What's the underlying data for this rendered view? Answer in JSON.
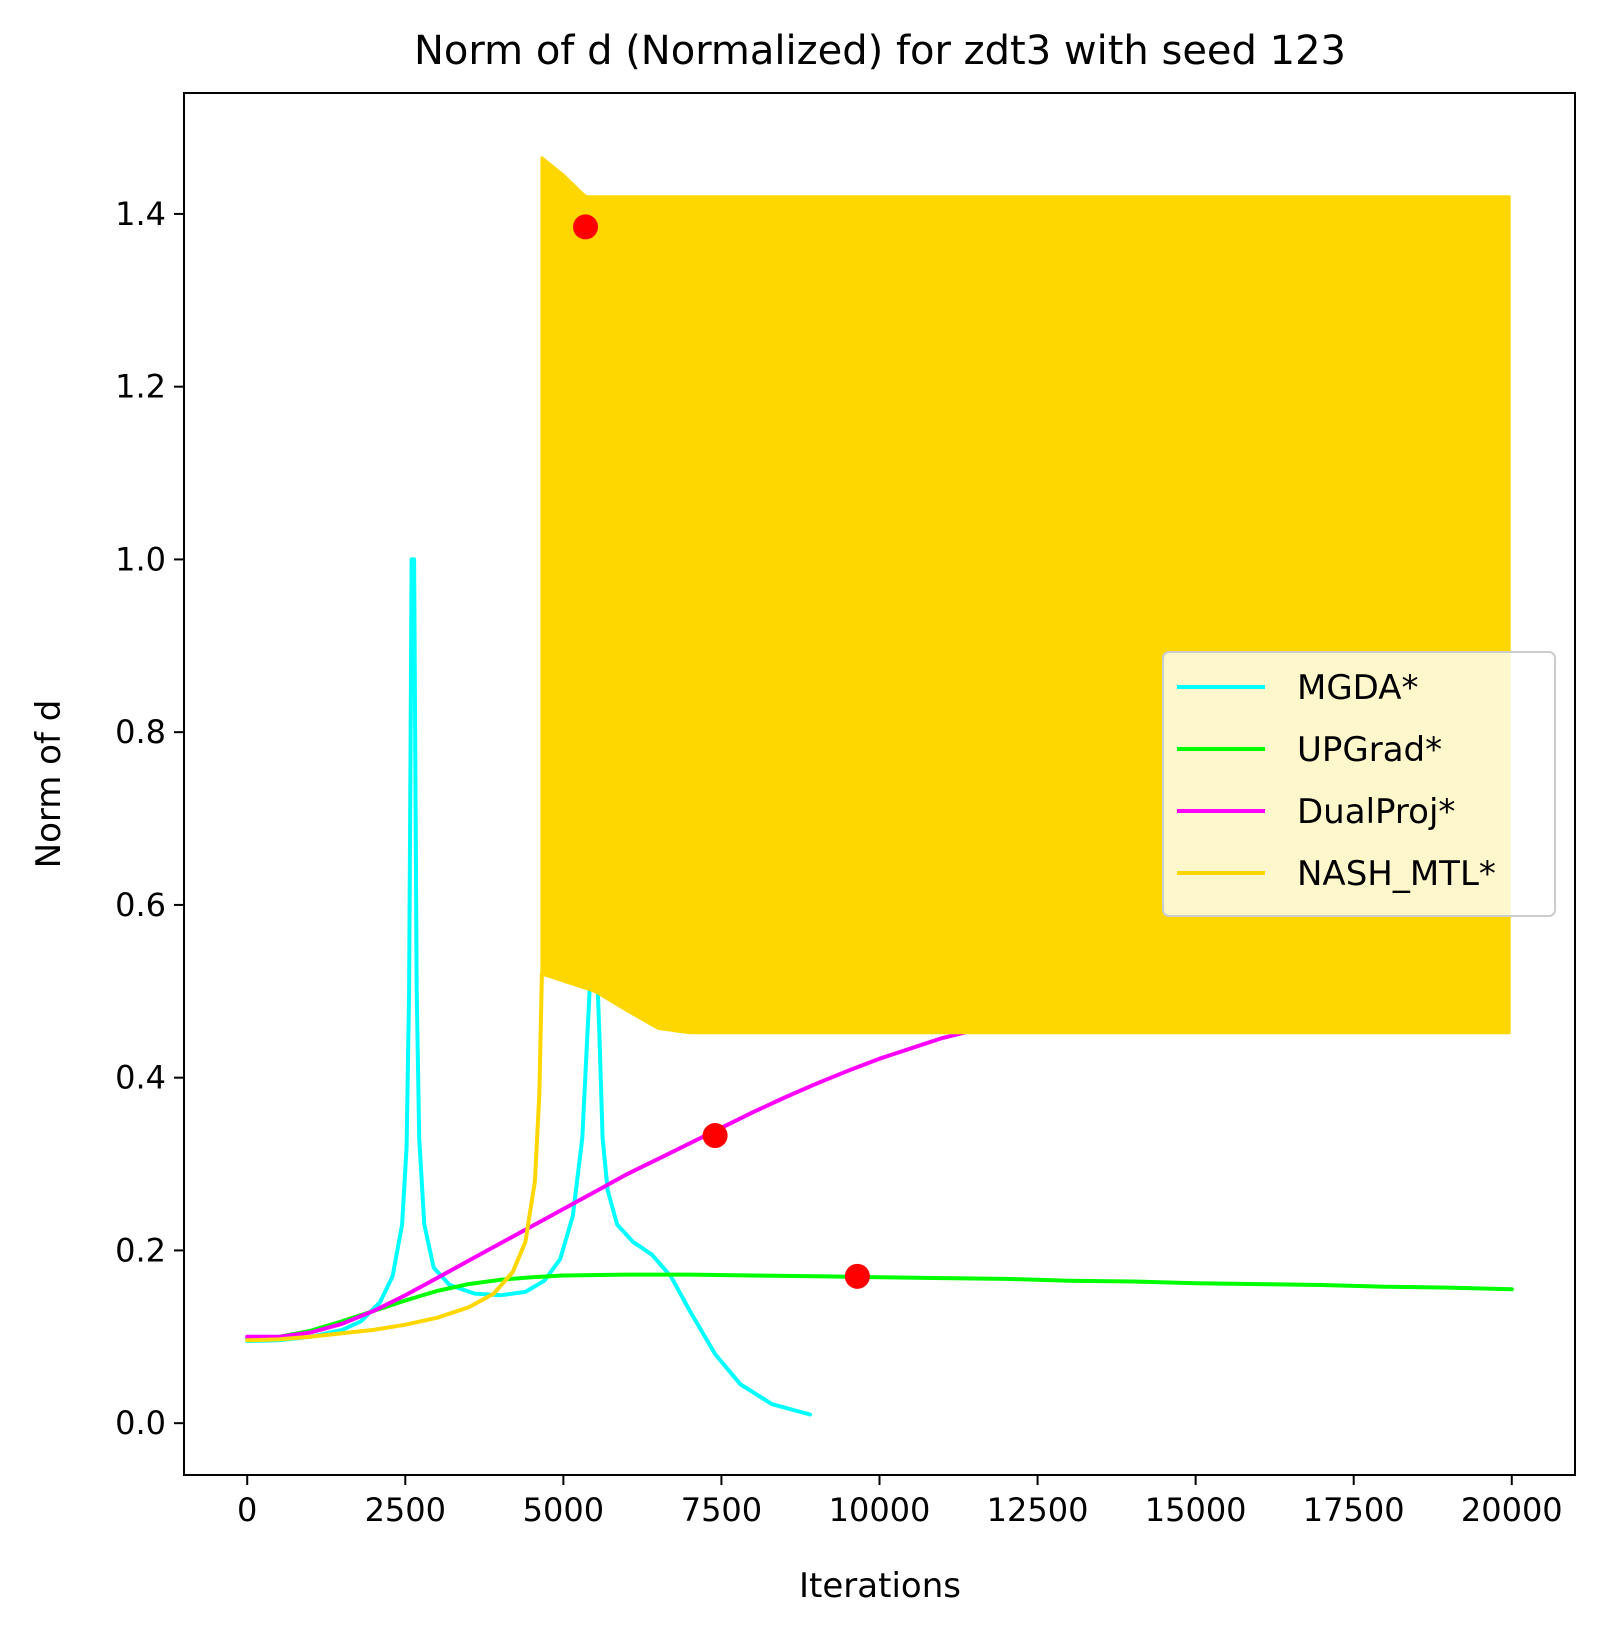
{
  "chart_data": {
    "type": "line",
    "title": "Norm of d (Normalized) for zdt3 with seed 123",
    "xlabel": "Iterations",
    "ylabel": "Norm of d",
    "xlim": [
      -1000,
      21000
    ],
    "ylim": [
      -0.06,
      1.54
    ],
    "xticks": [
      0,
      2500,
      5000,
      7500,
      10000,
      12500,
      15000,
      17500,
      20000
    ],
    "xtick_labels": [
      "0",
      "2500",
      "5000",
      "7500",
      "10000",
      "12500",
      "15000",
      "17500",
      "20000"
    ],
    "yticks": [
      0.0,
      0.2,
      0.4,
      0.6,
      0.8,
      1.0,
      1.2,
      1.4
    ],
    "ytick_labels": [
      "0.0",
      "0.2",
      "0.4",
      "0.6",
      "0.8",
      "1.0",
      "1.2",
      "1.4"
    ],
    "grid": false,
    "legend_position": "center-right",
    "series": [
      {
        "name": "MGDA*",
        "color": "#00ffff",
        "points": [
          [
            0,
            0.095
          ],
          [
            500,
            0.096
          ],
          [
            1000,
            0.1
          ],
          [
            1500,
            0.108
          ],
          [
            1800,
            0.118
          ],
          [
            2100,
            0.14
          ],
          [
            2300,
            0.17
          ],
          [
            2450,
            0.23
          ],
          [
            2520,
            0.32
          ],
          [
            2560,
            0.5
          ],
          [
            2580,
            0.75
          ],
          [
            2600,
            1.0
          ],
          [
            2640,
            1.0
          ],
          [
            2660,
            0.75
          ],
          [
            2680,
            0.5
          ],
          [
            2720,
            0.33
          ],
          [
            2800,
            0.23
          ],
          [
            2950,
            0.18
          ],
          [
            3200,
            0.16
          ],
          [
            3600,
            0.15
          ],
          [
            4000,
            0.148
          ],
          [
            4400,
            0.152
          ],
          [
            4700,
            0.165
          ],
          [
            4950,
            0.19
          ],
          [
            5150,
            0.24
          ],
          [
            5300,
            0.33
          ],
          [
            5380,
            0.45
          ],
          [
            5450,
            0.55
          ],
          [
            5520,
            0.55
          ],
          [
            5570,
            0.45
          ],
          [
            5620,
            0.33
          ],
          [
            5700,
            0.27
          ],
          [
            5850,
            0.23
          ],
          [
            6100,
            0.21
          ],
          [
            6400,
            0.195
          ],
          [
            6700,
            0.17
          ],
          [
            7000,
            0.13
          ],
          [
            7400,
            0.08
          ],
          [
            7800,
            0.045
          ],
          [
            8300,
            0.022
          ],
          [
            8900,
            0.01
          ]
        ]
      },
      {
        "name": "UPGrad*",
        "color": "#00ff00",
        "points": [
          [
            0,
            0.097
          ],
          [
            500,
            0.1
          ],
          [
            1000,
            0.107
          ],
          [
            1500,
            0.118
          ],
          [
            2000,
            0.13
          ],
          [
            2500,
            0.142
          ],
          [
            3000,
            0.153
          ],
          [
            3500,
            0.161
          ],
          [
            4000,
            0.166
          ],
          [
            4500,
            0.169
          ],
          [
            5000,
            0.171
          ],
          [
            6000,
            0.172
          ],
          [
            7000,
            0.172
          ],
          [
            8000,
            0.171
          ],
          [
            9000,
            0.17
          ],
          [
            10000,
            0.169
          ],
          [
            11000,
            0.168
          ],
          [
            12000,
            0.167
          ],
          [
            13000,
            0.165
          ],
          [
            14000,
            0.164
          ],
          [
            15000,
            0.162
          ],
          [
            16000,
            0.161
          ],
          [
            17000,
            0.16
          ],
          [
            18000,
            0.158
          ],
          [
            19000,
            0.157
          ],
          [
            20000,
            0.155
          ]
        ]
      },
      {
        "name": "DualProj*",
        "color": "#ff00ff",
        "points": [
          [
            0,
            0.1
          ],
          [
            500,
            0.1
          ],
          [
            1000,
            0.105
          ],
          [
            1500,
            0.115
          ],
          [
            2000,
            0.13
          ],
          [
            2500,
            0.148
          ],
          [
            3000,
            0.168
          ],
          [
            3500,
            0.188
          ],
          [
            4000,
            0.208
          ],
          [
            4500,
            0.228
          ],
          [
            5000,
            0.248
          ],
          [
            5500,
            0.268
          ],
          [
            6000,
            0.288
          ],
          [
            6500,
            0.306
          ],
          [
            7000,
            0.324
          ],
          [
            7500,
            0.342
          ],
          [
            8000,
            0.36
          ],
          [
            8500,
            0.377
          ],
          [
            9000,
            0.393
          ],
          [
            9500,
            0.408
          ],
          [
            10000,
            0.422
          ],
          [
            10500,
            0.434
          ],
          [
            11000,
            0.446
          ],
          [
            11500,
            0.455
          ],
          [
            12000,
            0.461
          ]
        ]
      },
      {
        "name": "NASH_MTL*",
        "color": "#ffd700",
        "points": [
          [
            0,
            0.096
          ],
          [
            500,
            0.097
          ],
          [
            1000,
            0.1
          ],
          [
            1500,
            0.104
          ],
          [
            2000,
            0.108
          ],
          [
            2500,
            0.114
          ],
          [
            3000,
            0.122
          ],
          [
            3500,
            0.134
          ],
          [
            3900,
            0.15
          ],
          [
            4200,
            0.175
          ],
          [
            4400,
            0.21
          ],
          [
            4550,
            0.28
          ],
          [
            4620,
            0.38
          ],
          [
            4660,
            0.52
          ]
        ],
        "oscillation_band": {
          "x_start": 4660,
          "x_end": 20000,
          "upper": [
            [
              4660,
              1.465
            ],
            [
              5000,
              1.445
            ],
            [
              5350,
              1.42
            ],
            [
              20000,
              1.42
            ]
          ],
          "lower": [
            [
              4660,
              0.52
            ],
            [
              5500,
              0.5
            ],
            [
              6000,
              0.478
            ],
            [
              6500,
              0.457
            ],
            [
              7000,
              0.452
            ],
            [
              20000,
              0.452
            ]
          ]
        }
      }
    ],
    "markers": {
      "color": "#ff0000",
      "points": [
        [
          5350,
          1.385
        ],
        [
          7400,
          0.333
        ],
        [
          9650,
          0.17
        ]
      ]
    }
  }
}
